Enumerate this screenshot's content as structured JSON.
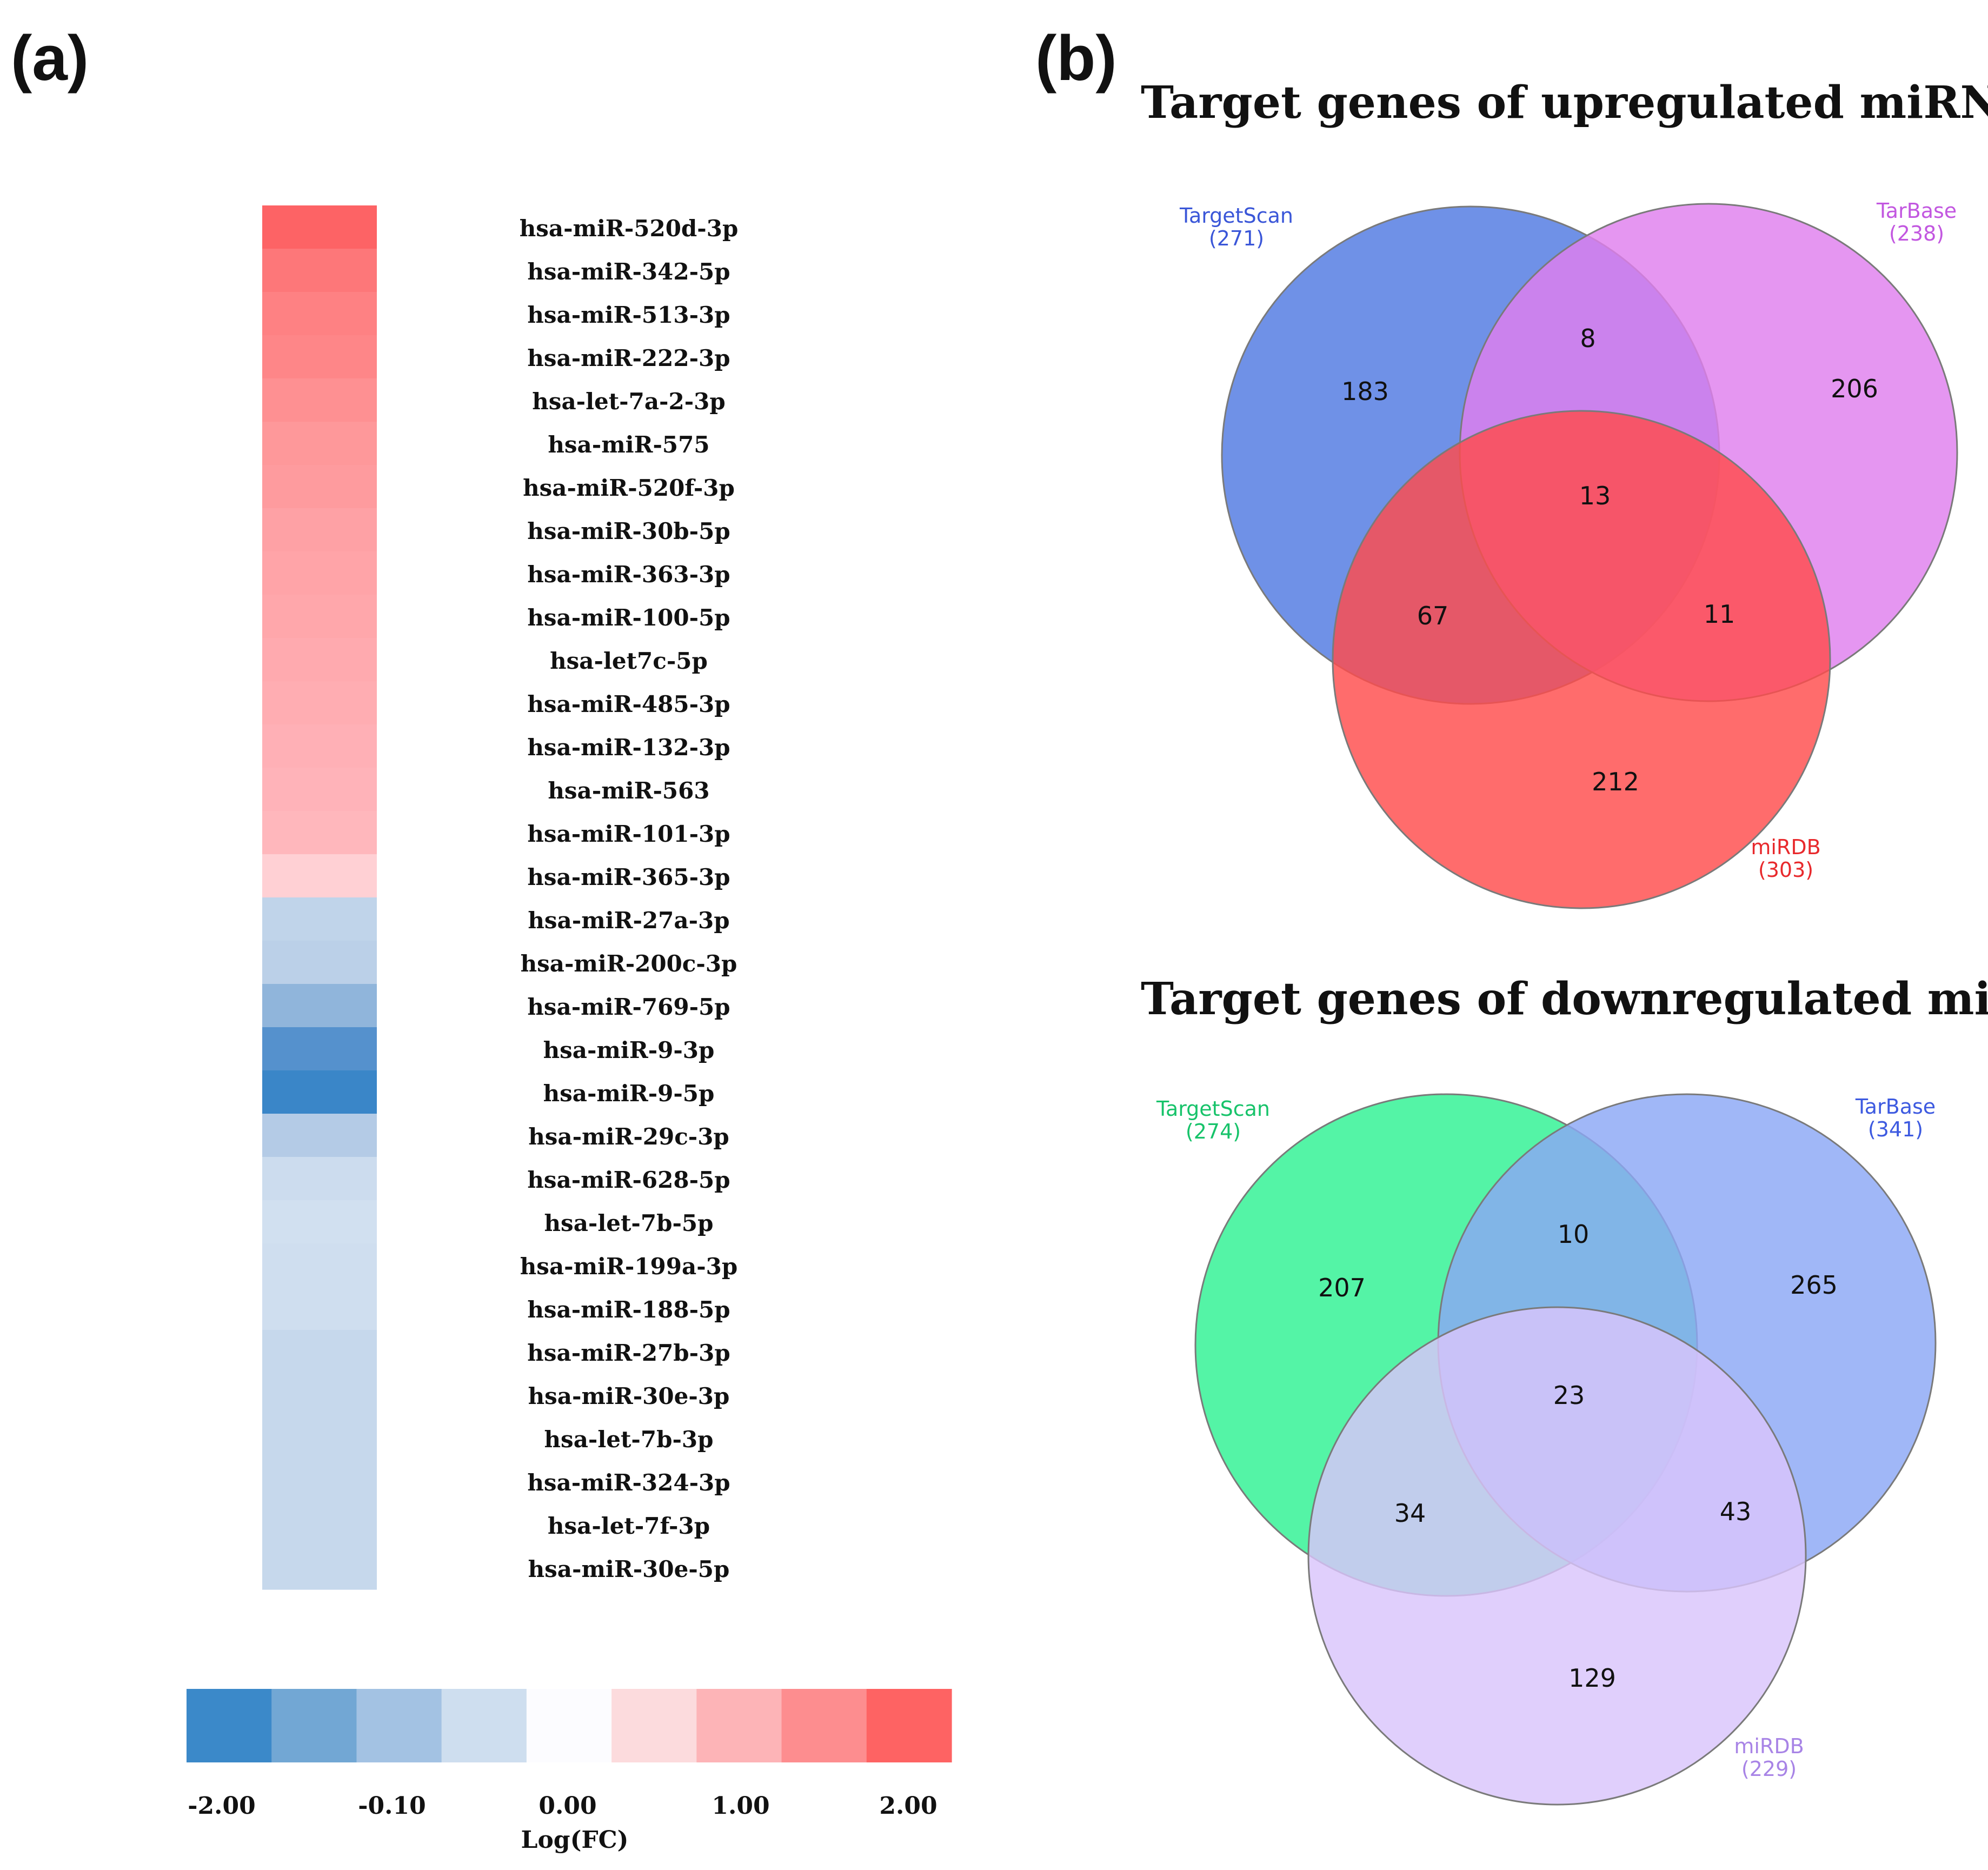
{
  "panels": {
    "a": "(a)",
    "b": "(b)"
  },
  "chart_data": [
    {
      "type": "heatmap",
      "panel": "(a)",
      "rows": [
        {
          "label": "hsa-miR-520d-3p",
          "value": 2.0
        },
        {
          "label": "hsa-miR-342-5p",
          "value": 1.8
        },
        {
          "label": "hsa-miR-513-3p",
          "value": 1.7
        },
        {
          "label": "hsa-miR-222-3p",
          "value": 1.65
        },
        {
          "label": "hsa-let-7a-2-3p",
          "value": 1.55
        },
        {
          "label": "hsa-miR-575",
          "value": 1.45
        },
        {
          "label": "hsa-miR-520f-3p",
          "value": 1.4
        },
        {
          "label": "hsa-miR-30b-5p",
          "value": 1.3
        },
        {
          "label": "hsa-miR-363-3p",
          "value": 1.25
        },
        {
          "label": "hsa-miR-100-5p",
          "value": 1.2
        },
        {
          "label": "hsa-let7c-5p",
          "value": 1.15
        },
        {
          "label": "hsa-miR-485-3p",
          "value": 1.1
        },
        {
          "label": "hsa-miR-132-3p",
          "value": 1.05
        },
        {
          "label": "hsa-miR-563",
          "value": 1.0
        },
        {
          "label": "hsa-miR-101-3p",
          "value": 0.95
        },
        {
          "label": "hsa-miR-365-3p",
          "value": 0.6
        },
        {
          "label": "hsa-miR-27a-3p",
          "value": -0.1
        },
        {
          "label": "hsa-miR-200c-3p",
          "value": -0.12
        },
        {
          "label": "hsa-miR-769-5p",
          "value": -0.4
        },
        {
          "label": "hsa-miR-9-3p",
          "value": -1.4
        },
        {
          "label": "hsa-miR-9-5p",
          "value": -2.0
        },
        {
          "label": "hsa-miR-29c-3p",
          "value": -0.15
        },
        {
          "label": "hsa-miR-628-5p",
          "value": -0.06
        },
        {
          "label": "hsa-let-7b-5p",
          "value": -0.04
        },
        {
          "label": "hsa-miR-199a-3p",
          "value": -0.05
        },
        {
          "label": "hsa-miR-188-5p",
          "value": -0.05
        },
        {
          "label": "hsa-miR-27b-3p",
          "value": -0.08
        },
        {
          "label": "hsa-miR-30e-3p",
          "value": -0.08
        },
        {
          "label": "hsa-let-7b-3p",
          "value": -0.08
        },
        {
          "label": "hsa-miR-324-3p",
          "value": -0.08
        },
        {
          "label": "hsa-let-7f-3p",
          "value": -0.08
        },
        {
          "label": "hsa-miR-30e-5p",
          "value": -0.08
        }
      ],
      "colorbar": {
        "colors": [
          "#3b89c9",
          "#72a7d4",
          "#a3c2e3",
          "#cedeef",
          "#fcfcff",
          "#fcdbdd",
          "#fdb4b7",
          "#fd8d8f",
          "#fe6363"
        ],
        "tick_labels": [
          "-2.00",
          "-0.10",
          "0.00",
          "1.00",
          "2.00"
        ],
        "xlabel": "Log(FC)"
      }
    },
    {
      "type": "venn",
      "panel": "(b)",
      "title": "Target genes of upregulated miRNAs",
      "sets": [
        {
          "name": "TargetScan",
          "size_text": "(271)",
          "color": "#4f79e2",
          "label_color": "#3a56d8"
        },
        {
          "name": "TarBase",
          "size_text": "(238)",
          "color": "#df7fee",
          "label_color": "#c257e0"
        },
        {
          "name": "miRDB",
          "size_text": "(303)",
          "color": "#ff4c4c",
          "label_color": "#e8292c"
        }
      ],
      "regions": {
        "only_1": "183",
        "only_2": "206",
        "only_3": "212",
        "r12": "8",
        "r13": "67",
        "r23": "11",
        "r123": "13"
      }
    },
    {
      "type": "venn",
      "panel": "(b)",
      "title": "Target genes of downregulated miRNAs",
      "sets": [
        {
          "name": "TargetScan",
          "size_text": "(274)",
          "color": "#2ef292",
          "label_color": "#17c36a"
        },
        {
          "name": "TarBase",
          "size_text": "(341)",
          "color": "#8ba7f5",
          "label_color": "#3d5ae0"
        },
        {
          "name": "miRDB",
          "size_text": "(229)",
          "color": "#d9c5fb",
          "label_color": "#a884e6"
        }
      ],
      "regions": {
        "only_1": "207",
        "only_2": "265",
        "only_3": "129",
        "r12": "10",
        "r13": "34",
        "r23": "43",
        "r123": "23"
      }
    }
  ]
}
